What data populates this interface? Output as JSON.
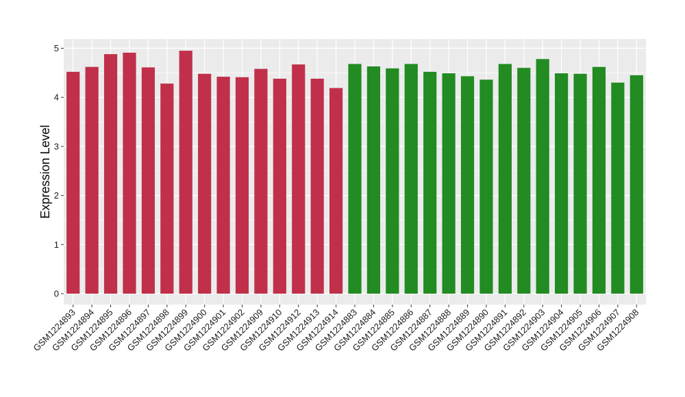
{
  "chart_data": {
    "type": "bar",
    "title": "",
    "xlabel": "",
    "ylabel": "Expression Level",
    "ylim": [
      0,
      5.2
    ],
    "yticks": [
      0,
      1,
      2,
      3,
      4,
      5
    ],
    "grid": true,
    "legend": "none",
    "panel_background": "#EBEBEB",
    "grid_color": "#FFFFFF",
    "categories": [
      "GSM1224893",
      "GSM1224894",
      "GSM1224895",
      "GSM1224896",
      "GSM1224897",
      "GSM1224898",
      "GSM1224899",
      "GSM1224900",
      "GSM1224901",
      "GSM1224902",
      "GSM1224909",
      "GSM1224910",
      "GSM1224912",
      "GSM1224913",
      "GSM1224914",
      "GSM1224883",
      "GSM1224884",
      "GSM1224885",
      "GSM1224886",
      "GSM1224887",
      "GSM1224888",
      "GSM1224889",
      "GSM1224890",
      "GSM1224891",
      "GSM1224892",
      "GSM1224903",
      "GSM1224904",
      "GSM1224905",
      "GSM1224906",
      "GSM1224907",
      "GSM1224908"
    ],
    "values": [
      4.52,
      4.62,
      4.88,
      4.91,
      4.61,
      4.28,
      4.95,
      4.48,
      4.42,
      4.41,
      4.58,
      4.38,
      4.67,
      4.38,
      4.19,
      4.68,
      4.63,
      4.59,
      4.68,
      4.52,
      4.49,
      4.43,
      4.36,
      4.68,
      4.6,
      4.78,
      4.49,
      4.48,
      4.62,
      4.3,
      4.45
    ],
    "colors": [
      "#C0304A",
      "#C0304A",
      "#C0304A",
      "#C0304A",
      "#C0304A",
      "#C0304A",
      "#C0304A",
      "#C0304A",
      "#C0304A",
      "#C0304A",
      "#C0304A",
      "#C0304A",
      "#C0304A",
      "#C0304A",
      "#C0304A",
      "#228B22",
      "#228B22",
      "#228B22",
      "#228B22",
      "#228B22",
      "#228B22",
      "#228B22",
      "#228B22",
      "#228B22",
      "#228B22",
      "#228B22",
      "#228B22",
      "#228B22",
      "#228B22",
      "#228B22",
      "#228B22"
    ]
  }
}
